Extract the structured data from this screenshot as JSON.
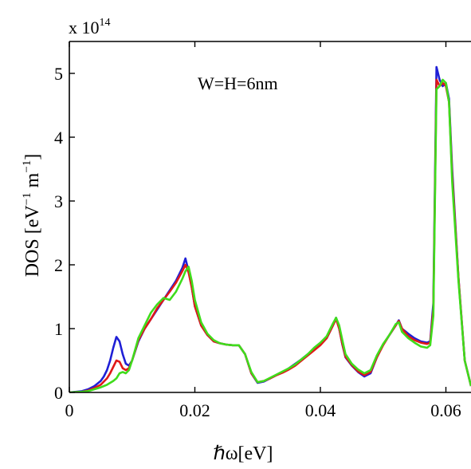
{
  "chart_data": {
    "type": "line",
    "xlabel": "ℏω[eV]",
    "ylabel_main": "DOS [eV",
    "ylabel_sup1": "−1",
    "ylabel_mid": " m",
    "ylabel_sup2": "−1",
    "ylabel_end": "]",
    "multiplier_base": "x 10",
    "multiplier_exp": "14",
    "annotation": "W=H=6nm",
    "xlim": [
      0,
      0.064
    ],
    "ylim": [
      0,
      5.5
    ],
    "xticks": [
      0,
      0.02,
      0.04,
      0.06
    ],
    "xtick_labels": [
      "0",
      "0.02",
      "0.04",
      "0.06"
    ],
    "yticks": [
      0,
      1,
      2,
      3,
      4,
      5
    ],
    "ytick_labels": [
      "0",
      "1",
      "2",
      "3",
      "4",
      "5"
    ],
    "grid": false,
    "series": [
      {
        "color": "#1f1fd6",
        "x": [
          0,
          0.002,
          0.003,
          0.004,
          0.005,
          0.0055,
          0.006,
          0.0065,
          0.007,
          0.0075,
          0.008,
          0.0085,
          0.009,
          0.0095,
          0.01,
          0.011,
          0.012,
          0.013,
          0.014,
          0.015,
          0.016,
          0.017,
          0.018,
          0.0185,
          0.019,
          0.0195,
          0.02,
          0.021,
          0.022,
          0.023,
          0.024,
          0.025,
          0.026,
          0.027,
          0.028,
          0.029,
          0.03,
          0.031,
          0.032,
          0.033,
          0.034,
          0.035,
          0.036,
          0.037,
          0.038,
          0.039,
          0.04,
          0.041,
          0.042,
          0.0425,
          0.043,
          0.0435,
          0.044,
          0.045,
          0.046,
          0.047,
          0.048,
          0.049,
          0.05,
          0.051,
          0.052,
          0.0525,
          0.053,
          0.054,
          0.055,
          0.056,
          0.057,
          0.0575,
          0.058,
          0.0585,
          0.059,
          0.0595,
          0.06,
          0.0605,
          0.061,
          0.062,
          0.063,
          0.064
        ],
        "y": [
          0.0,
          0.02,
          0.05,
          0.1,
          0.18,
          0.25,
          0.35,
          0.5,
          0.7,
          0.87,
          0.8,
          0.6,
          0.45,
          0.42,
          0.5,
          0.8,
          1.0,
          1.15,
          1.3,
          1.45,
          1.6,
          1.75,
          1.95,
          2.1,
          1.9,
          1.65,
          1.35,
          1.05,
          0.9,
          0.8,
          0.77,
          0.75,
          0.74,
          0.74,
          0.6,
          0.3,
          0.15,
          0.17,
          0.22,
          0.27,
          0.32,
          0.38,
          0.45,
          0.52,
          0.6,
          0.68,
          0.75,
          0.85,
          1.05,
          1.17,
          1.0,
          0.75,
          0.55,
          0.42,
          0.32,
          0.25,
          0.3,
          0.55,
          0.75,
          0.9,
          1.05,
          1.13,
          1.0,
          0.92,
          0.85,
          0.8,
          0.78,
          0.8,
          1.4,
          5.1,
          4.9,
          4.8,
          4.85,
          4.6,
          3.5,
          1.8,
          0.5,
          0.1
        ]
      },
      {
        "color": "#e01818",
        "x": [
          0,
          0.002,
          0.003,
          0.004,
          0.005,
          0.0055,
          0.006,
          0.0065,
          0.007,
          0.0075,
          0.008,
          0.0085,
          0.009,
          0.0095,
          0.01,
          0.011,
          0.012,
          0.013,
          0.014,
          0.015,
          0.016,
          0.017,
          0.018,
          0.0185,
          0.019,
          0.0195,
          0.02,
          0.021,
          0.022,
          0.023,
          0.024,
          0.025,
          0.026,
          0.027,
          0.028,
          0.029,
          0.03,
          0.031,
          0.032,
          0.033,
          0.034,
          0.035,
          0.036,
          0.037,
          0.038,
          0.039,
          0.04,
          0.041,
          0.042,
          0.0425,
          0.043,
          0.0435,
          0.044,
          0.045,
          0.046,
          0.047,
          0.048,
          0.049,
          0.05,
          0.051,
          0.052,
          0.0525,
          0.053,
          0.054,
          0.055,
          0.056,
          0.057,
          0.0575,
          0.058,
          0.0585,
          0.059,
          0.0595,
          0.06,
          0.0605,
          0.061,
          0.062,
          0.063,
          0.064
        ],
        "y": [
          0.0,
          0.01,
          0.03,
          0.07,
          0.12,
          0.17,
          0.22,
          0.3,
          0.4,
          0.5,
          0.48,
          0.38,
          0.35,
          0.38,
          0.5,
          0.82,
          1.0,
          1.15,
          1.32,
          1.45,
          1.58,
          1.72,
          1.9,
          2.0,
          1.88,
          1.65,
          1.35,
          1.05,
          0.9,
          0.8,
          0.77,
          0.75,
          0.74,
          0.74,
          0.6,
          0.3,
          0.16,
          0.18,
          0.22,
          0.27,
          0.31,
          0.36,
          0.42,
          0.5,
          0.58,
          0.66,
          0.74,
          0.85,
          1.05,
          1.15,
          1.0,
          0.76,
          0.56,
          0.43,
          0.33,
          0.27,
          0.32,
          0.55,
          0.74,
          0.9,
          1.05,
          1.12,
          1.0,
          0.88,
          0.82,
          0.78,
          0.76,
          0.78,
          1.3,
          4.9,
          4.8,
          4.85,
          4.8,
          4.55,
          3.4,
          1.8,
          0.5,
          0.1
        ]
      },
      {
        "color": "#3fdc1c",
        "x": [
          0,
          0.002,
          0.003,
          0.004,
          0.005,
          0.0055,
          0.006,
          0.0065,
          0.007,
          0.0075,
          0.008,
          0.0085,
          0.009,
          0.0095,
          0.01,
          0.011,
          0.012,
          0.013,
          0.014,
          0.015,
          0.016,
          0.017,
          0.018,
          0.0185,
          0.019,
          0.0195,
          0.02,
          0.021,
          0.022,
          0.023,
          0.024,
          0.025,
          0.026,
          0.027,
          0.028,
          0.029,
          0.03,
          0.031,
          0.032,
          0.033,
          0.034,
          0.035,
          0.036,
          0.037,
          0.038,
          0.039,
          0.04,
          0.041,
          0.042,
          0.0425,
          0.043,
          0.0435,
          0.044,
          0.045,
          0.046,
          0.047,
          0.048,
          0.049,
          0.05,
          0.051,
          0.052,
          0.0525,
          0.053,
          0.054,
          0.055,
          0.056,
          0.057,
          0.0575,
          0.058,
          0.0585,
          0.059,
          0.0595,
          0.06,
          0.0605,
          0.061,
          0.062,
          0.063,
          0.064
        ],
        "y": [
          0.0,
          0.01,
          0.02,
          0.05,
          0.08,
          0.1,
          0.12,
          0.15,
          0.18,
          0.22,
          0.3,
          0.32,
          0.3,
          0.35,
          0.5,
          0.85,
          1.05,
          1.25,
          1.38,
          1.48,
          1.45,
          1.58,
          1.78,
          1.9,
          1.97,
          1.75,
          1.45,
          1.1,
          0.92,
          0.82,
          0.77,
          0.75,
          0.74,
          0.74,
          0.6,
          0.32,
          0.16,
          0.18,
          0.23,
          0.28,
          0.33,
          0.38,
          0.44,
          0.52,
          0.6,
          0.7,
          0.78,
          0.88,
          1.08,
          1.17,
          1.05,
          0.82,
          0.6,
          0.45,
          0.36,
          0.3,
          0.35,
          0.58,
          0.76,
          0.9,
          1.07,
          1.1,
          0.95,
          0.85,
          0.78,
          0.72,
          0.7,
          0.74,
          1.2,
          4.75,
          4.8,
          4.9,
          4.85,
          4.55,
          3.3,
          1.75,
          0.5,
          0.1
        ]
      }
    ]
  }
}
